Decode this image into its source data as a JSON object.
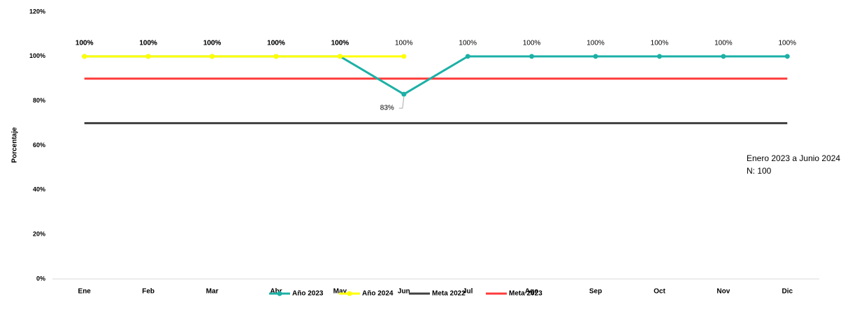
{
  "chart_data": {
    "type": "line",
    "y_label": "Porcentaje",
    "categories": [
      "Ene",
      "Feb",
      "Mar",
      "Abr",
      "May",
      "Jun",
      "Jul",
      "Ago",
      "Sep",
      "Oct",
      "Nov",
      "Dic"
    ],
    "series": [
      {
        "name": "Año 2023",
        "color": "#1cb0a6",
        "marker": true,
        "values": [
          100,
          100,
          100,
          100,
          100,
          83,
          100,
          100,
          100,
          100,
          100,
          100
        ],
        "value_labels": [
          "100%",
          "100%",
          "100%",
          "100%",
          "100%",
          "83%",
          "100%",
          "100%",
          "100%",
          "100%",
          "100%",
          "100%"
        ]
      },
      {
        "name": "Año 2024",
        "color": "#ffff00",
        "marker": true,
        "values": [
          100,
          100,
          100,
          100,
          100,
          100,
          null,
          null,
          null,
          null,
          null,
          null
        ],
        "value_labels": [
          "100%",
          "100%",
          "100%",
          "100%",
          "100%",
          "100%",
          null,
          null,
          null,
          null,
          null,
          null
        ]
      },
      {
        "name": "Meta 2022",
        "color": "#404040",
        "marker": false,
        "values": [
          70,
          70,
          70,
          70,
          70,
          70,
          70,
          70,
          70,
          70,
          70,
          70
        ]
      },
      {
        "name": "Meta 2023",
        "color": "#ff3b3b",
        "marker": false,
        "values": [
          90,
          90,
          90,
          90,
          90,
          90,
          90,
          90,
          90,
          90,
          90,
          90
        ]
      }
    ],
    "ylim": [
      0,
      120
    ],
    "yticks": [
      {
        "value": 0,
        "label": "0%"
      },
      {
        "value": 20,
        "label": "20%"
      },
      {
        "value": 40,
        "label": "40%"
      },
      {
        "value": 60,
        "label": "60%"
      },
      {
        "value": 80,
        "label": "80%"
      },
      {
        "value": 100,
        "label": "100%"
      },
      {
        "value": 120,
        "label": "120%"
      }
    ],
    "grid": false,
    "legend": "bottom",
    "annotations": [
      "Enero 2023  a Junio 2024",
      "N: 100"
    ]
  }
}
